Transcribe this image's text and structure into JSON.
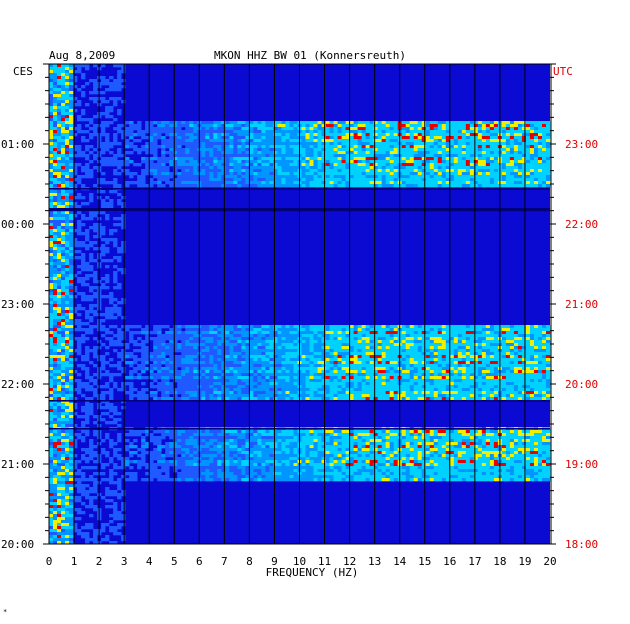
{
  "chart_data": {
    "type": "heatmap",
    "title": "MKON HHZ BW 01 (Konnersreuth)",
    "date": "Aug 8,2009",
    "xlabel": "FREQUENCY (HZ)",
    "x_range": [
      0,
      20
    ],
    "x_ticks": [
      "0",
      "1",
      "2",
      "3",
      "4",
      "5",
      "6",
      "7",
      "8",
      "9",
      "10",
      "11",
      "12",
      "13",
      "14",
      "15",
      "16",
      "17",
      "18",
      "19",
      "20"
    ],
    "left_axis": {
      "label": "CES",
      "ticks": [
        "01:00",
        "00:00",
        "23:00",
        "22:00",
        "21:00",
        "20:00"
      ],
      "range": [
        "20:00",
        "02:00"
      ]
    },
    "right_axis": {
      "label": "UTC",
      "ticks": [
        "23:00",
        "22:00",
        "21:00",
        "20:00",
        "19:00",
        "18:00"
      ],
      "range": [
        "18:00",
        "00:00"
      ]
    },
    "colors": {
      "background": "#0a0ad2",
      "low": "#0000b4",
      "mid": "#1e5aff",
      "high": "#00d2ff",
      "peak_yellow": "#f0f000",
      "peak_red": "#e60000",
      "utc_label": "#e00000",
      "grid": "#000000"
    },
    "intensity_bands_hours_ago": [
      {
        "from": 0.0,
        "to": 0.72,
        "level": "low"
      },
      {
        "from": 0.72,
        "to": 1.55,
        "level": "high"
      },
      {
        "from": 1.55,
        "to": 3.25,
        "level": "low"
      },
      {
        "from": 3.25,
        "to": 4.2,
        "level": "high"
      },
      {
        "from": 4.2,
        "to": 4.55,
        "level": "low"
      },
      {
        "from": 4.55,
        "to": 5.2,
        "level": "high"
      },
      {
        "from": 5.2,
        "to": 6.0,
        "level": "low"
      }
    ],
    "grid": true
  }
}
